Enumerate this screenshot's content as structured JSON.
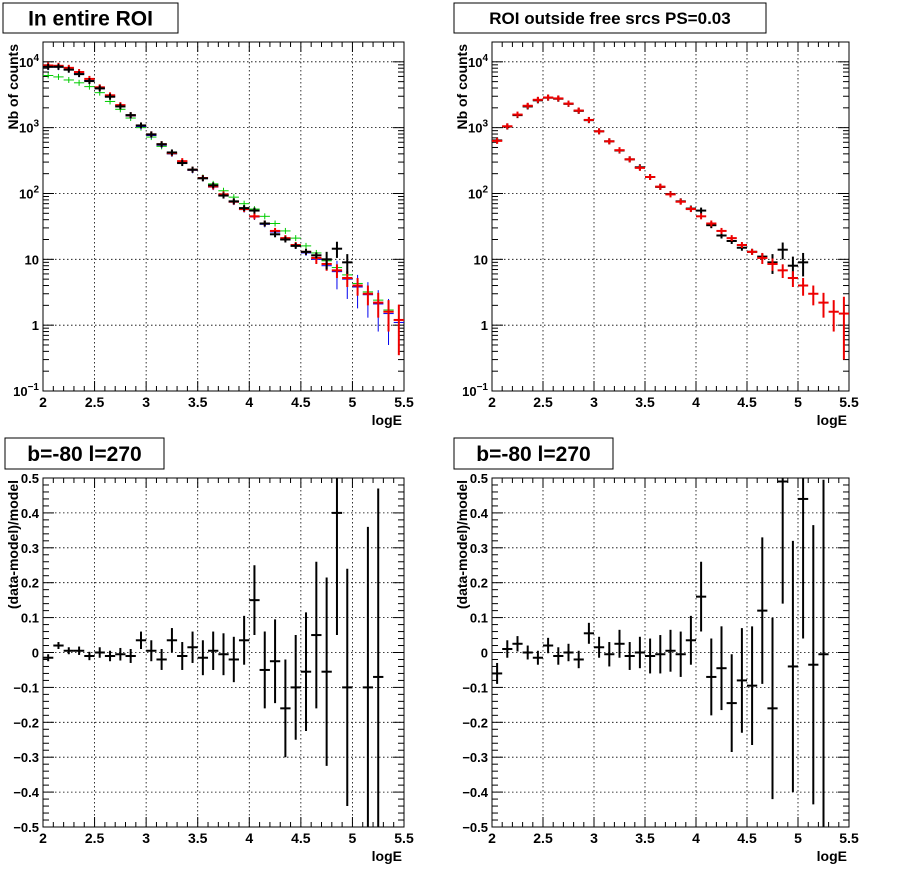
{
  "chart_data": [
    {
      "type": "scatter",
      "title": "In entire ROI",
      "xlabel": "logE",
      "ylabel": "Nb of counts",
      "xlim": [
        2,
        5.5
      ],
      "ylim": [
        0.1,
        20000
      ],
      "log_y": true,
      "grid": true,
      "x_ticks": [
        "2",
        "2.5",
        "3",
        "3.5",
        "4",
        "4.5",
        "5",
        "5.5"
      ],
      "y_ticks": [
        {
          "v": 0.1,
          "base": "10",
          "exp": "−1"
        },
        {
          "v": 1,
          "label": "1"
        },
        {
          "v": 10,
          "label": "10"
        },
        {
          "v": 100,
          "base": "10",
          "exp": "2"
        },
        {
          "v": 1000,
          "base": "10",
          "exp": "3"
        },
        {
          "v": 10000,
          "base": "10",
          "exp": "4"
        }
      ],
      "series": [
        {
          "color": "#00cc00",
          "width": 1,
          "x": [
            2.05,
            2.15,
            2.25,
            2.35,
            2.45,
            2.55,
            2.65,
            2.75,
            2.85,
            2.95,
            3.05,
            3.15,
            3.25,
            3.35,
            3.45,
            3.55,
            3.65,
            3.75,
            3.85,
            3.95,
            4.05,
            4.15,
            4.25,
            4.35,
            4.45,
            4.55,
            4.65,
            4.75,
            4.85,
            4.95,
            5.05,
            5.15,
            5.25,
            5.35,
            5.45
          ],
          "y": [
            6200,
            5900,
            5300,
            4800,
            4200,
            3400,
            2500,
            1900,
            1400,
            1000,
            720,
            520,
            400,
            300,
            230,
            175,
            140,
            110,
            88,
            70,
            58,
            45,
            35,
            27,
            21,
            16,
            12.5,
            9.5,
            7.5,
            5.8,
            4.3,
            3.2,
            2.4,
            1.7,
            1.2
          ],
          "err": [
            0,
            0,
            0,
            0,
            0,
            0,
            0,
            0,
            0,
            0,
            0,
            0,
            0,
            0,
            0,
            0,
            0,
            0,
            0,
            0,
            0,
            0,
            0,
            0,
            0,
            0,
            0,
            0,
            0,
            0,
            0,
            0,
            0,
            0,
            0.55
          ]
        },
        {
          "color": "#0000ee",
          "width": 1,
          "x": [
            2.05,
            2.15,
            2.25,
            2.35,
            2.45,
            2.55,
            2.65,
            2.75,
            2.85,
            2.95,
            3.05,
            3.15,
            3.25,
            3.35,
            3.45,
            3.55,
            3.65,
            3.75,
            3.85,
            3.95,
            4.05,
            4.15,
            4.25,
            4.35,
            4.45,
            4.55,
            4.65,
            4.75,
            4.85,
            4.95,
            5.05,
            5.15,
            5.25,
            5.35,
            5.45
          ],
          "y": [
            8300,
            8300,
            7600,
            6600,
            5200,
            3900,
            3000,
            2150,
            1500,
            1040,
            760,
            540,
            400,
            300,
            225,
            170,
            125,
            95,
            74,
            57,
            44,
            34,
            26,
            20,
            16,
            12.5,
            10,
            8,
            6.5,
            5,
            3.8,
            2.9,
            2.1,
            1.5,
            1.1
          ],
          "err": [
            0,
            0,
            0,
            0,
            0,
            0,
            0,
            0,
            0,
            0,
            0,
            0,
            0,
            0,
            0,
            0,
            0,
            0,
            0,
            0,
            0,
            0,
            0,
            0,
            0,
            0,
            0,
            0,
            3,
            2.5,
            2,
            1.6,
            1.3,
            1,
            0.7
          ]
        },
        {
          "color": "#ee0000",
          "width": 2,
          "x": [
            2.05,
            2.15,
            2.25,
            2.35,
            2.45,
            2.55,
            2.65,
            2.75,
            2.85,
            2.95,
            3.05,
            3.15,
            3.25,
            3.35,
            3.45,
            3.55,
            3.65,
            3.75,
            3.85,
            3.95,
            4.05,
            4.15,
            4.25,
            4.35,
            4.45,
            4.55,
            4.65,
            4.75,
            4.85,
            4.95,
            5.05,
            5.15,
            5.25,
            5.35,
            5.45
          ],
          "y": [
            8800,
            8700,
            8100,
            7000,
            5500,
            4100,
            3100,
            2200,
            1540,
            1080,
            790,
            560,
            410,
            310,
            230,
            172,
            128,
            97,
            75,
            58,
            45,
            35,
            27,
            21,
            16.5,
            13,
            10.5,
            8.5,
            6.8,
            5.2,
            4,
            3,
            2.2,
            1.6,
            1.2
          ],
          "err": [
            0,
            0,
            0,
            0,
            0,
            0,
            0,
            0,
            0,
            0,
            0,
            0,
            0,
            0,
            0,
            0,
            0,
            0,
            0,
            0,
            0,
            0,
            0,
            0,
            0,
            0,
            2,
            1.8,
            1.6,
            1.4,
            1.2,
            1,
            0.9,
            0.8,
            0.85
          ]
        },
        {
          "color": "#000000",
          "width": 2,
          "x": [
            2.05,
            2.15,
            2.25,
            2.35,
            2.45,
            2.55,
            2.65,
            2.75,
            2.85,
            2.95,
            3.05,
            3.15,
            3.25,
            3.35,
            3.45,
            3.55,
            3.65,
            3.75,
            3.85,
            3.95,
            4.05,
            4.15,
            4.25,
            4.35,
            4.45,
            4.55,
            4.65,
            4.75,
            4.85,
            4.95
          ],
          "y": [
            8400,
            8400,
            7600,
            6500,
            5100,
            3950,
            2950,
            2100,
            1550,
            1080,
            790,
            560,
            420,
            290,
            230,
            170,
            133,
            93,
            76,
            60,
            55,
            35,
            24,
            20,
            16,
            13,
            11.5,
            10,
            14.5,
            9
          ],
          "err": [
            0,
            0,
            0,
            0,
            0,
            0,
            0,
            0,
            0,
            0,
            0,
            0,
            0,
            0,
            0,
            0,
            0,
            0,
            0,
            0,
            0,
            0,
            0,
            0,
            0,
            0,
            0,
            3,
            4,
            3
          ]
        }
      ]
    },
    {
      "type": "scatter",
      "title": "ROI outside free srcs PS=0.03",
      "xlabel": "logE",
      "ylabel": "Nb of counts",
      "xlim": [
        2,
        5.5
      ],
      "ylim": [
        0.1,
        20000
      ],
      "log_y": true,
      "grid": true,
      "x_ticks": [
        "2",
        "2.5",
        "3",
        "3.5",
        "4",
        "4.5",
        "5",
        "5.5"
      ],
      "y_ticks": [
        {
          "v": 0.1,
          "base": "10",
          "exp": "−1"
        },
        {
          "v": 1,
          "label": "1"
        },
        {
          "v": 10,
          "label": "10"
        },
        {
          "v": 100,
          "base": "10",
          "exp": "2"
        },
        {
          "v": 1000,
          "base": "10",
          "exp": "3"
        },
        {
          "v": 10000,
          "base": "10",
          "exp": "4"
        }
      ],
      "series": [
        {
          "color": "#000000",
          "width": 2,
          "x": [
            2.05,
            2.15,
            2.25,
            2.35,
            2.45,
            2.55,
            2.65,
            2.75,
            2.85,
            2.95,
            3.05,
            3.15,
            3.25,
            3.35,
            3.45,
            3.55,
            3.65,
            3.75,
            3.85,
            3.95,
            4.05,
            4.15,
            4.25,
            4.35,
            4.45,
            4.55,
            4.65,
            4.75,
            4.85,
            4.95,
            5.05
          ],
          "y": [
            640,
            1040,
            1550,
            2100,
            2600,
            2850,
            2750,
            2300,
            1800,
            1300,
            880,
            620,
            450,
            330,
            250,
            178,
            126,
            98,
            76,
            59,
            55,
            33,
            23,
            19,
            15,
            13,
            11,
            9,
            14,
            8,
            9
          ],
          "err": [
            0,
            0,
            0,
            0,
            0,
            0,
            0,
            0,
            0,
            0,
            0,
            0,
            0,
            0,
            0,
            0,
            0,
            0,
            0,
            0,
            0,
            0,
            0,
            0,
            0,
            0,
            0,
            3,
            4,
            3,
            3.5
          ]
        },
        {
          "color": "#ee0000",
          "width": 2,
          "x": [
            2.05,
            2.15,
            2.25,
            2.35,
            2.45,
            2.55,
            2.65,
            2.75,
            2.85,
            2.95,
            3.05,
            3.15,
            3.25,
            3.35,
            3.45,
            3.55,
            3.65,
            3.75,
            3.85,
            3.95,
            4.05,
            4.15,
            4.25,
            4.35,
            4.45,
            4.55,
            4.65,
            4.75,
            4.85,
            4.95,
            5.05,
            5.15,
            5.25,
            5.35,
            5.45
          ],
          "y": [
            630,
            1050,
            1580,
            2150,
            2650,
            2870,
            2780,
            2320,
            1820,
            1310,
            880,
            620,
            455,
            330,
            245,
            178,
            127,
            97,
            75,
            58,
            45,
            35,
            27,
            21,
            16.5,
            13,
            10.5,
            8.5,
            6.8,
            5.2,
            4,
            3,
            2.2,
            1.6,
            1.5
          ],
          "err": [
            0,
            0,
            0,
            0,
            0,
            0,
            0,
            0,
            0,
            0,
            0,
            0,
            0,
            0,
            0,
            0,
            0,
            0,
            0,
            0,
            0,
            0,
            0,
            0,
            0,
            0,
            2,
            1.8,
            1.6,
            1.4,
            1.2,
            1,
            0.9,
            0.8,
            1.2
          ]
        }
      ]
    },
    {
      "type": "scatter",
      "title": "b=-80 l=270",
      "xlabel": "logE",
      "ylabel": "(data-model)/model",
      "xlim": [
        2,
        5.5
      ],
      "ylim": [
        -0.5,
        0.5
      ],
      "grid": true,
      "x_ticks": [
        "2",
        "2.5",
        "3",
        "3.5",
        "4",
        "4.5",
        "5",
        "5.5"
      ],
      "y_ticks": [
        {
          "v": 0.5,
          "label": "0.5"
        },
        {
          "v": 0.4,
          "label": "0.4"
        },
        {
          "v": 0.3,
          "label": "0.3"
        },
        {
          "v": 0.2,
          "label": "0.2"
        },
        {
          "v": 0.1,
          "label": "0.1"
        },
        {
          "v": 0,
          "label": "0"
        },
        {
          "v": -0.1,
          "label": "−0.1"
        },
        {
          "v": -0.2,
          "label": "−0.2"
        },
        {
          "v": -0.3,
          "label": "−0.3"
        },
        {
          "v": -0.4,
          "label": "−0.4"
        },
        {
          "v": -0.5,
          "label": "−0.5"
        }
      ],
      "series": [
        {
          "color": "#000000",
          "width": 2,
          "x": [
            2.05,
            2.15,
            2.25,
            2.35,
            2.45,
            2.55,
            2.65,
            2.75,
            2.85,
            2.95,
            3.05,
            3.15,
            3.25,
            3.35,
            3.45,
            3.55,
            3.65,
            3.75,
            3.85,
            3.95,
            4.05,
            4.15,
            4.25,
            4.35,
            4.45,
            4.55,
            4.65,
            4.75,
            4.85,
            4.95,
            5.15,
            5.25
          ],
          "y": [
            -0.015,
            0.02,
            0.005,
            0.005,
            -0.01,
            0.0,
            -0.01,
            -0.005,
            -0.01,
            0.035,
            0.005,
            -0.02,
            0.035,
            -0.01,
            0.015,
            -0.015,
            0.005,
            -0.005,
            -0.02,
            0.035,
            0.15,
            -0.05,
            -0.025,
            -0.16,
            -0.1,
            -0.055,
            0.05,
            -0.055,
            0.4,
            -0.1,
            -0.1,
            -0.07
          ],
          "err": [
            0.01,
            0.01,
            0.01,
            0.012,
            0.012,
            0.015,
            0.015,
            0.018,
            0.02,
            0.025,
            0.03,
            0.03,
            0.035,
            0.04,
            0.045,
            0.05,
            0.055,
            0.06,
            0.065,
            0.07,
            0.1,
            0.11,
            0.12,
            0.14,
            0.15,
            0.17,
            0.21,
            0.27,
            0.35,
            0.34,
            0.46,
            0.54
          ]
        }
      ]
    },
    {
      "type": "scatter",
      "title": "b=-80 l=270",
      "xlabel": "logE",
      "ylabel": "(data-model)/model",
      "xlim": [
        2,
        5.5
      ],
      "ylim": [
        -0.5,
        0.5
      ],
      "grid": true,
      "x_ticks": [
        "2",
        "2.5",
        "3",
        "3.5",
        "4",
        "4.5",
        "5",
        "5.5"
      ],
      "y_ticks": [
        {
          "v": 0.5,
          "label": "0.5"
        },
        {
          "v": 0.4,
          "label": "0.4"
        },
        {
          "v": 0.3,
          "label": "0.3"
        },
        {
          "v": 0.2,
          "label": "0.2"
        },
        {
          "v": 0.1,
          "label": "0.1"
        },
        {
          "v": 0,
          "label": "0"
        },
        {
          "v": -0.1,
          "label": "−0.1"
        },
        {
          "v": -0.2,
          "label": "−0.2"
        },
        {
          "v": -0.3,
          "label": "−0.3"
        },
        {
          "v": -0.4,
          "label": "−0.4"
        },
        {
          "v": -0.5,
          "label": "−0.5"
        }
      ],
      "series": [
        {
          "color": "#000000",
          "width": 2,
          "x": [
            2.05,
            2.15,
            2.25,
            2.35,
            2.45,
            2.55,
            2.65,
            2.75,
            2.85,
            2.95,
            3.05,
            3.15,
            3.25,
            3.35,
            3.45,
            3.55,
            3.65,
            3.75,
            3.85,
            3.95,
            4.05,
            4.15,
            4.25,
            4.35,
            4.45,
            4.55,
            4.65,
            4.75,
            4.85,
            4.95,
            5.05,
            5.15,
            5.25
          ],
          "y": [
            -0.06,
            0.01,
            0.025,
            0.0,
            -0.015,
            0.02,
            -0.01,
            0.0,
            -0.02,
            0.055,
            0.015,
            -0.005,
            0.025,
            -0.01,
            0.0,
            -0.01,
            -0.005,
            0.005,
            -0.005,
            0.035,
            0.16,
            -0.07,
            -0.045,
            -0.145,
            -0.08,
            -0.095,
            0.12,
            -0.16,
            0.49,
            -0.04,
            0.44,
            -0.035,
            -0.005
          ],
          "err": [
            0.03,
            0.025,
            0.022,
            0.02,
            0.02,
            0.022,
            0.025,
            0.025,
            0.025,
            0.03,
            0.03,
            0.035,
            0.04,
            0.04,
            0.045,
            0.05,
            0.055,
            0.06,
            0.065,
            0.07,
            0.1,
            0.11,
            0.12,
            0.14,
            0.15,
            0.17,
            0.21,
            0.26,
            0.35,
            0.36,
            0.4,
            0.4,
            0.5
          ]
        }
      ]
    }
  ]
}
